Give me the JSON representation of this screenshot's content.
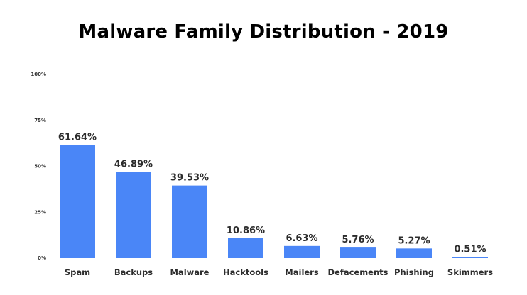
{
  "chart_data": {
    "type": "bar",
    "title": "Malware Family Distribution - 2019",
    "xlabel": "",
    "ylabel": "",
    "categories": [
      "Spam",
      "Backups",
      "Malware",
      "Hacktools",
      "Mailers",
      "Defacements",
      "Phishing",
      "Skimmers"
    ],
    "values": [
      61.64,
      46.89,
      39.53,
      10.86,
      6.63,
      5.76,
      5.27,
      0.51
    ],
    "value_labels": [
      "61.64%",
      "46.89%",
      "39.53%",
      "10.86%",
      "6.63%",
      "5.76%",
      "5.27%",
      "0.51%"
    ],
    "ylim": [
      0,
      100
    ],
    "y_ticks": [
      0,
      25,
      50,
      75,
      100
    ],
    "y_tick_labels": [
      "0%",
      "25%",
      "50%",
      "75%",
      "100%"
    ],
    "grid": false,
    "legend": "none",
    "bar_color": "#4a86f7"
  }
}
